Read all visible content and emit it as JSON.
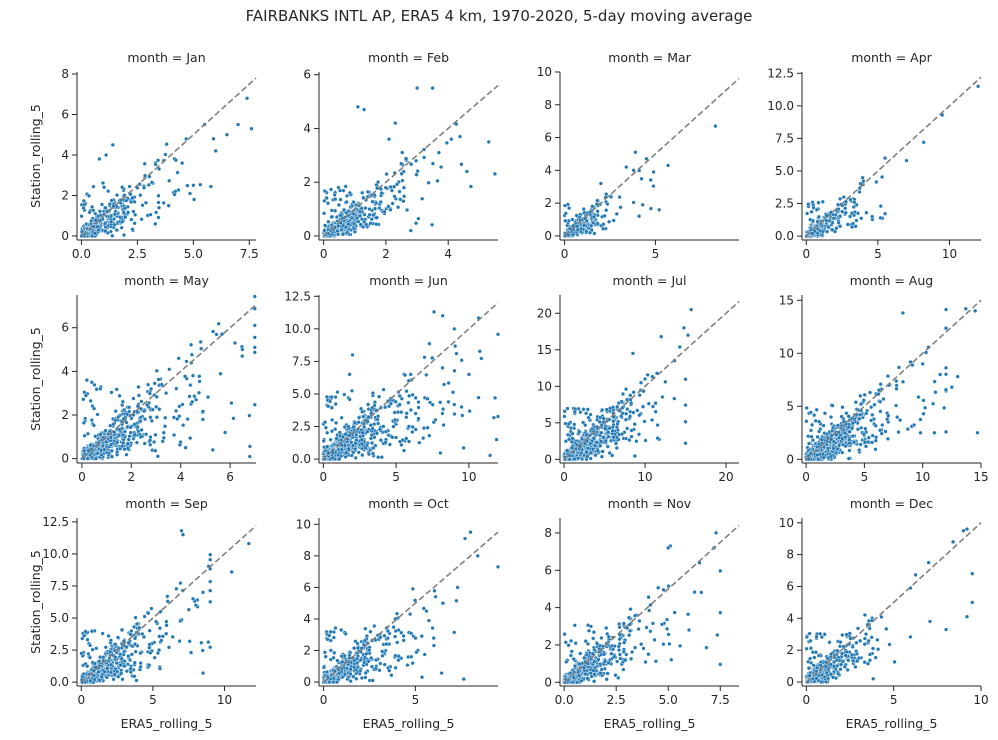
{
  "figure": {
    "title": "FAIRBANKS INTL AP, ERA5 4 km, 1970-2020, 5-day moving average"
  },
  "chart_data": {
    "type": "scatter",
    "xlabel": "ERA5_rolling_5",
    "ylabel": "Station_rolling_5",
    "reference_line": "1:1 dashed",
    "colors": {
      "points": "#1f77b4",
      "point_edge": "#ffffff",
      "reference_line": "#808080",
      "axis": "#262626"
    },
    "facets": [
      {
        "title": "month = Jan",
        "xlim": [
          -0.2,
          7.8
        ],
        "ylim": [
          -0.2,
          8.1
        ],
        "xticks": [
          {
            "v": 0,
            "t": "0.0"
          },
          {
            "v": 2.5,
            "t": "2.5"
          },
          {
            "v": 5,
            "t": "5.0"
          },
          {
            "v": 7.5,
            "t": "7.5"
          }
        ],
        "yticks": [
          {
            "v": 0,
            "t": "0"
          },
          {
            "v": 2,
            "t": "2"
          },
          {
            "v": 4,
            "t": "4"
          },
          {
            "v": 6,
            "t": "6"
          },
          {
            "v": 8,
            "t": "8"
          }
        ],
        "n": 380,
        "center_scale": 1.2,
        "tail_max": 7.7,
        "points": [
          [
            7.4,
            6.8
          ],
          [
            7.6,
            5.3
          ],
          [
            7.0,
            5.5
          ],
          [
            6.5,
            5.0
          ],
          [
            5.5,
            5.5
          ],
          [
            5.9,
            4.8
          ],
          [
            6.0,
            4.2
          ],
          [
            4.5,
            3.6
          ],
          [
            4.2,
            2.2
          ],
          [
            5.0,
            2.5
          ],
          [
            1.4,
            4.5
          ],
          [
            1.1,
            4.0
          ],
          [
            0.8,
            3.8
          ]
        ]
      },
      {
        "title": "month = Feb",
        "xlim": [
          -0.15,
          5.6
        ],
        "ylim": [
          -0.15,
          6.1
        ],
        "xticks": [
          {
            "v": 0,
            "t": "0"
          },
          {
            "v": 2,
            "t": "2"
          },
          {
            "v": 4,
            "t": "4"
          }
        ],
        "yticks": [
          {
            "v": 0,
            "t": "0"
          },
          {
            "v": 2,
            "t": "2"
          },
          {
            "v": 4,
            "t": "4"
          },
          {
            "v": 6,
            "t": "6"
          }
        ],
        "n": 430,
        "center_scale": 0.85,
        "tail_max": 5.5,
        "points": [
          [
            3.0,
            5.5
          ],
          [
            3.5,
            5.5
          ],
          [
            2.3,
            4.2
          ],
          [
            2.1,
            3.6
          ],
          [
            4.6,
            2.4
          ],
          [
            5.3,
            3.5
          ],
          [
            4.1,
            3.6
          ],
          [
            3.7,
            3.1
          ],
          [
            1.1,
            4.8
          ],
          [
            1.3,
            4.7
          ],
          [
            2.8,
            0.2
          ]
        ]
      },
      {
        "title": "month = Mar",
        "xlim": [
          -0.25,
          9.6
        ],
        "ylim": [
          -0.25,
          10.0
        ],
        "xticks": [
          {
            "v": 0,
            "t": "0"
          },
          {
            "v": 5,
            "t": "5"
          }
        ],
        "yticks": [
          {
            "v": 0,
            "t": "0"
          },
          {
            "v": 2,
            "t": "2"
          },
          {
            "v": 4,
            "t": "4"
          },
          {
            "v": 6,
            "t": "6"
          },
          {
            "v": 8,
            "t": "8"
          },
          {
            "v": 10,
            "t": "10"
          }
        ],
        "n": 260,
        "center_scale": 0.9,
        "tail_max": 5.5,
        "points": [
          [
            8.3,
            6.7
          ],
          [
            5.7,
            4.3
          ],
          [
            4.9,
            3.9
          ],
          [
            4.3,
            1.9
          ],
          [
            4.1,
            1.2
          ],
          [
            3.9,
            5.1
          ],
          [
            3.4,
            4.2
          ],
          [
            3.8,
            4.0
          ],
          [
            2.0,
            3.2
          ]
        ]
      },
      {
        "title": "month = Apr",
        "xlim": [
          -0.3,
          12.2
        ],
        "ylim": [
          -0.3,
          12.6
        ],
        "xticks": [
          {
            "v": 0,
            "t": "0"
          },
          {
            "v": 5,
            "t": "5"
          },
          {
            "v": 10,
            "t": "10"
          }
        ],
        "yticks": [
          {
            "v": 0,
            "t": "0.0"
          },
          {
            "v": 2.5,
            "t": "2.5"
          },
          {
            "v": 5,
            "t": "5.0"
          },
          {
            "v": 7.5,
            "t": "7.5"
          },
          {
            "v": 10,
            "t": "10.0"
          },
          {
            "v": 12.5,
            "t": "12.5"
          }
        ],
        "n": 300,
        "center_scale": 1.2,
        "tail_max": 5.5,
        "points": [
          [
            12.0,
            11.5
          ],
          [
            9.5,
            9.3
          ],
          [
            8.2,
            7.2
          ],
          [
            7.0,
            5.8
          ],
          [
            5.2,
            2.3
          ],
          [
            4.2,
            1.8
          ],
          [
            3.5,
            1.2
          ],
          [
            4.6,
            1.5
          ],
          [
            3.2,
            0.7
          ]
        ]
      },
      {
        "title": "month = May",
        "xlim": [
          -0.2,
          7.05
        ],
        "ylim": [
          -0.2,
          7.5
        ],
        "xticks": [
          {
            "v": 0,
            "t": "0"
          },
          {
            "v": 2,
            "t": "2"
          },
          {
            "v": 4,
            "t": "4"
          },
          {
            "v": 6,
            "t": "6"
          }
        ],
        "yticks": [
          {
            "v": 0,
            "t": "0"
          },
          {
            "v": 2,
            "t": "2"
          },
          {
            "v": 4,
            "t": "4"
          },
          {
            "v": 6,
            "t": "6"
          }
        ],
        "n": 520,
        "center_scale": 1.6,
        "tail_max": 7,
        "points": [
          [
            6.2,
            5.3
          ],
          [
            6.5,
            5.0
          ],
          [
            7.0,
            5.1
          ],
          [
            6.8,
            0.1
          ],
          [
            5.8,
            1.2
          ],
          [
            5.3,
            0.4
          ],
          [
            4.9,
            1.8
          ],
          [
            4.5,
            3.8
          ],
          [
            4.2,
            0.5
          ],
          [
            0.2,
            3.6
          ],
          [
            0.4,
            3.5
          ]
        ]
      },
      {
        "title": "month = Jun",
        "xlim": [
          -0.3,
          12.0
        ],
        "ylim": [
          -0.3,
          12.6
        ],
        "xticks": [
          {
            "v": 0,
            "t": "0"
          },
          {
            "v": 5,
            "t": "5"
          },
          {
            "v": 10,
            "t": "10"
          }
        ],
        "yticks": [
          {
            "v": 0,
            "t": "0.0"
          },
          {
            "v": 2.5,
            "t": "2.5"
          },
          {
            "v": 5,
            "t": "5.0"
          },
          {
            "v": 7.5,
            "t": "7.5"
          },
          {
            "v": 10,
            "t": "10.0"
          },
          {
            "v": 12.5,
            "t": "12.5"
          }
        ],
        "n": 650,
        "center_scale": 2.4,
        "tail_max": 12,
        "points": [
          [
            7.6,
            11.3
          ],
          [
            8.2,
            11.0
          ],
          [
            9.0,
            10.0
          ],
          [
            11.8,
            4.7
          ],
          [
            11.9,
            1.5
          ],
          [
            10.0,
            6.5
          ],
          [
            9.5,
            4.0
          ],
          [
            2.0,
            8.0
          ],
          [
            1.8,
            6.5
          ]
        ]
      },
      {
        "title": "month = Jul",
        "xlim": [
          -0.5,
          21.6
        ],
        "ylim": [
          -0.5,
          22.5
        ],
        "xticks": [
          {
            "v": 0,
            "t": "0"
          },
          {
            "v": 10,
            "t": "10"
          },
          {
            "v": 20,
            "t": "20"
          }
        ],
        "yticks": [
          {
            "v": 0,
            "t": "0"
          },
          {
            "v": 5,
            "t": "5"
          },
          {
            "v": 10,
            "t": "10"
          },
          {
            "v": 15,
            "t": "15"
          },
          {
            "v": 20,
            "t": "20"
          }
        ],
        "n": 700,
        "center_scale": 3.2,
        "tail_max": 15,
        "points": [
          [
            15.7,
            20.5
          ],
          [
            14.8,
            18.0
          ],
          [
            15.3,
            17.0
          ],
          [
            12.0,
            16.8
          ],
          [
            12.5,
            10.6
          ],
          [
            8.5,
            14.5
          ],
          [
            10.0,
            11.0
          ],
          [
            9.5,
            10.5
          ]
        ]
      },
      {
        "title": "month = Aug",
        "xlim": [
          -0.35,
          15.0
        ],
        "ylim": [
          -0.35,
          15.5
        ],
        "xticks": [
          {
            "v": 0,
            "t": "0"
          },
          {
            "v": 5,
            "t": "5"
          },
          {
            "v": 10,
            "t": "10"
          },
          {
            "v": 15,
            "t": "15"
          }
        ],
        "yticks": [
          {
            "v": 0,
            "t": "0"
          },
          {
            "v": 5,
            "t": "5"
          },
          {
            "v": 10,
            "t": "10"
          },
          {
            "v": 15,
            "t": "15"
          }
        ],
        "n": 750,
        "center_scale": 2.4,
        "tail_max": 12,
        "points": [
          [
            13.7,
            14.2
          ],
          [
            14.5,
            14.0
          ],
          [
            14.7,
            2.5
          ],
          [
            11.0,
            2.5
          ],
          [
            11.5,
            8.0
          ],
          [
            13.0,
            7.8
          ],
          [
            12.5,
            6.8
          ],
          [
            8.3,
            13.8
          ],
          [
            10.0,
            9.0
          ]
        ]
      },
      {
        "title": "month = Sep",
        "xlim": [
          -0.3,
          12.2
        ],
        "ylim": [
          -0.3,
          12.8
        ],
        "xticks": [
          {
            "v": 0,
            "t": "0"
          },
          {
            "v": 5,
            "t": "5"
          },
          {
            "v": 10,
            "t": "10"
          }
        ],
        "yticks": [
          {
            "v": 0,
            "t": "0.0"
          },
          {
            "v": 2.5,
            "t": "2.5"
          },
          {
            "v": 5,
            "t": "5.0"
          },
          {
            "v": 7.5,
            "t": "7.5"
          },
          {
            "v": 10,
            "t": "10.0"
          },
          {
            "v": 12.5,
            "t": "12.5"
          }
        ],
        "n": 560,
        "center_scale": 2.0,
        "tail_max": 9,
        "points": [
          [
            7.0,
            11.8
          ],
          [
            7.1,
            11.5
          ],
          [
            11.7,
            10.8
          ],
          [
            10.5,
            8.6
          ],
          [
            8.5,
            7.0
          ],
          [
            8.0,
            6.0
          ],
          [
            7.8,
            6.5
          ]
        ]
      },
      {
        "title": "month = Oct",
        "xlim": [
          -0.25,
          9.5
        ],
        "ylim": [
          -0.25,
          10.4
        ],
        "xticks": [
          {
            "v": 0,
            "t": "0"
          },
          {
            "v": 5,
            "t": "5"
          }
        ],
        "yticks": [
          {
            "v": 0,
            "t": "0"
          },
          {
            "v": 2,
            "t": "2"
          },
          {
            "v": 4,
            "t": "4"
          },
          {
            "v": 6,
            "t": "6"
          },
          {
            "v": 8,
            "t": "8"
          },
          {
            "v": 10,
            "t": "10"
          }
        ],
        "n": 480,
        "center_scale": 1.6,
        "tail_max": 9,
        "points": [
          [
            9.5,
            7.3
          ],
          [
            8.0,
            9.5
          ],
          [
            7.7,
            9.1
          ],
          [
            8.4,
            8.0
          ],
          [
            7.3,
            6.0
          ],
          [
            6.5,
            5.0
          ],
          [
            5.6,
            4.5
          ]
        ]
      },
      {
        "title": "month = Nov",
        "xlim": [
          -0.2,
          8.4
        ],
        "ylim": [
          -0.2,
          8.8
        ],
        "xticks": [
          {
            "v": 0,
            "t": "0.0"
          },
          {
            "v": 2.5,
            "t": "2.5"
          },
          {
            "v": 5,
            "t": "5.0"
          },
          {
            "v": 7.5,
            "t": "7.5"
          }
        ],
        "yticks": [
          {
            "v": 0,
            "t": "0"
          },
          {
            "v": 2,
            "t": "2"
          },
          {
            "v": 4,
            "t": "4"
          },
          {
            "v": 6,
            "t": "6"
          },
          {
            "v": 8,
            "t": "8"
          }
        ],
        "n": 460,
        "center_scale": 1.4,
        "tail_max": 7.5,
        "points": [
          [
            7.3,
            8.0
          ],
          [
            7.2,
            7.2
          ],
          [
            6.5,
            6.4
          ],
          [
            5.1,
            7.3
          ],
          [
            5.0,
            7.2
          ],
          [
            4.7,
            3.1
          ],
          [
            6.0,
            2.8
          ]
        ]
      },
      {
        "title": "month = Dec",
        "xlim": [
          -0.25,
          10.0
        ],
        "ylim": [
          -0.25,
          10.3
        ],
        "xticks": [
          {
            "v": 0,
            "t": "0"
          },
          {
            "v": 5,
            "t": "5"
          },
          {
            "v": 10,
            "t": "10"
          }
        ],
        "yticks": [
          {
            "v": 0,
            "t": "0"
          },
          {
            "v": 2,
            "t": "2"
          },
          {
            "v": 4,
            "t": "4"
          },
          {
            "v": 6,
            "t": "6"
          },
          {
            "v": 8,
            "t": "8"
          },
          {
            "v": 10,
            "t": "10"
          }
        ],
        "n": 400,
        "center_scale": 1.4,
        "tail_max": 9,
        "points": [
          [
            9.0,
            9.5
          ],
          [
            9.2,
            9.6
          ],
          [
            9.5,
            6.8
          ],
          [
            9.5,
            5.0
          ],
          [
            9.2,
            4.1
          ],
          [
            8.0,
            3.3
          ],
          [
            7.0,
            7.5
          ],
          [
            8.4,
            8.8
          ]
        ]
      }
    ]
  }
}
